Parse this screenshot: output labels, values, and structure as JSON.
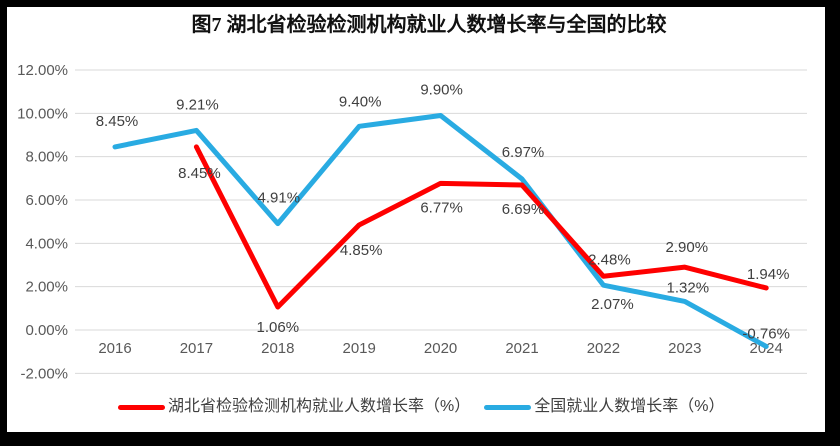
{
  "title": "图7 湖北省检验检测机构就业人数增长率与全国的比较",
  "chart_data": {
    "type": "line",
    "title": "图7 湖北省检验检测机构就业人数增长率与全国的比较",
    "categories": [
      "2016",
      "2017",
      "2018",
      "2019",
      "2020",
      "2021",
      "2022",
      "2023",
      "2024"
    ],
    "series": [
      {
        "name": "湖北省检验检测机构就业人数增长率（%）",
        "color": "#FE0000",
        "values": [
          null,
          8.45,
          1.06,
          4.85,
          6.77,
          6.69,
          2.48,
          2.9,
          1.94
        ],
        "data_labels": [
          null,
          "8.45%",
          "1.06%",
          "4.85%",
          "6.77%",
          "6.69%",
          "2.48%",
          "2.90%",
          "1.94%"
        ],
        "label_offsets": [
          null,
          [
            3,
            26
          ],
          [
            0,
            20
          ],
          [
            2,
            25
          ],
          [
            1,
            24
          ],
          [
            1,
            24
          ],
          [
            6,
            -17
          ],
          [
            2,
            -20
          ],
          [
            2,
            -14
          ]
        ]
      },
      {
        "name": "全国就业人数增长率（%）",
        "color": "#29ABE2",
        "values": [
          8.45,
          9.21,
          4.91,
          9.4,
          9.9,
          6.97,
          2.07,
          1.32,
          -0.76
        ],
        "data_labels": [
          "8.45%",
          "9.21%",
          "4.91%",
          "9.40%",
          "9.90%",
          "6.97%",
          "2.07%",
          "1.32%",
          "-0.76%"
        ],
        "label_offsets": [
          [
            2,
            -26
          ],
          [
            1,
            -26
          ],
          [
            1,
            -26
          ],
          [
            1,
            -25
          ],
          [
            1,
            -26
          ],
          [
            1,
            -27
          ],
          [
            9,
            19
          ],
          [
            3,
            -14
          ],
          [
            0,
            -13
          ]
        ]
      }
    ],
    "y_axis": {
      "min": -2,
      "max": 12,
      "step": 2,
      "ticks": [
        {
          "label": "12.00%",
          "value": 12
        },
        {
          "label": "10.00%",
          "value": 10
        },
        {
          "label": "8.00%",
          "value": 8
        },
        {
          "label": "6.00%",
          "value": 6
        },
        {
          "label": "4.00%",
          "value": 4
        },
        {
          "label": "2.00%",
          "value": 2
        },
        {
          "label": "0.00%",
          "value": 0
        },
        {
          "label": "-2.00%",
          "value": -2
        }
      ]
    },
    "xlabel": "",
    "ylabel": "",
    "grid": true,
    "legend_position": "bottom",
    "colors": {
      "grid_line": "#D9D9D9",
      "axis_text": "#595959",
      "data_label_text": "#404040",
      "title_text": "#111111",
      "background": "#FFFFFF",
      "frame": "#000000"
    }
  },
  "legend": {
    "items": [
      {
        "label": "湖北省检验检测机构就业人数增长率（%）",
        "color": "#FE0000"
      },
      {
        "label": "全国就业人数增长率（%）",
        "color": "#29ABE2"
      }
    ]
  }
}
